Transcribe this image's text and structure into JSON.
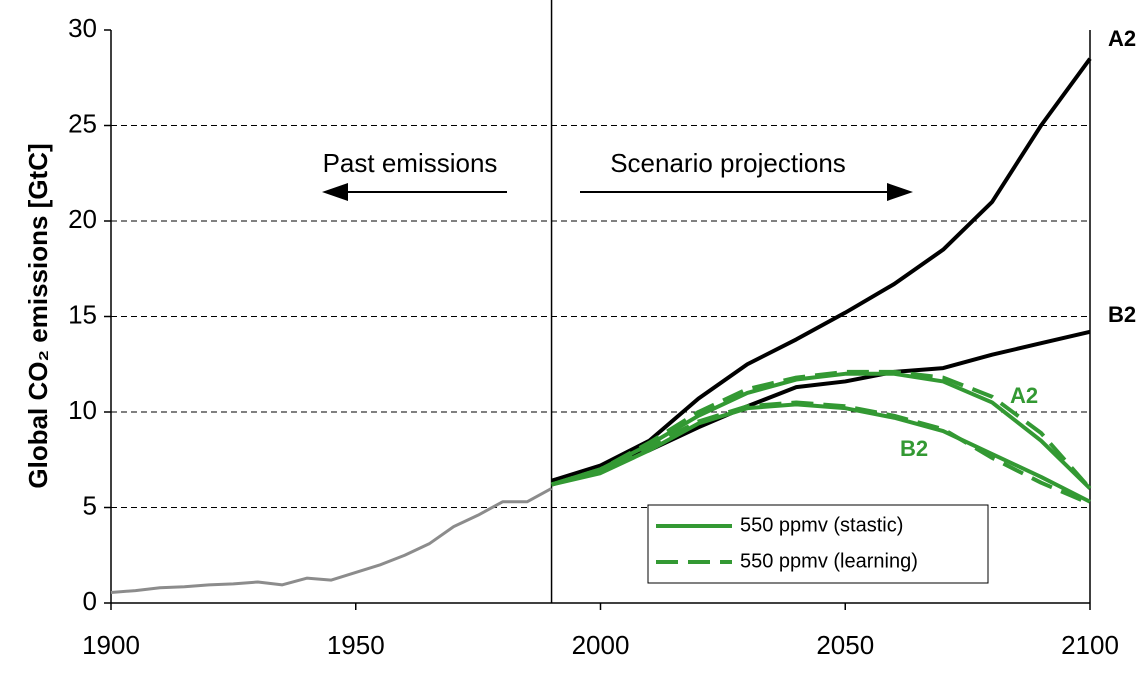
{
  "chart_data": {
    "type": "line",
    "ylabel": "Global CO₂ emissions [GtC]",
    "xlim": [
      1900,
      2100
    ],
    "xticks": [
      1900,
      1950,
      2000,
      2050,
      2100
    ],
    "ylim": [
      0,
      30
    ],
    "yticks": [
      0,
      5,
      10,
      15,
      20,
      25,
      30
    ],
    "grid": true,
    "divider": 1990,
    "series": [
      {
        "color": "#8c8c8c",
        "style": "solid",
        "x": [
          1900,
          1905,
          1910,
          1915,
          1920,
          1925,
          1930,
          1935,
          1940,
          1945,
          1950,
          1955,
          1960,
          1965,
          1970,
          1975,
          1980,
          1985,
          1990
        ],
        "values": [
          0.55,
          0.65,
          0.8,
          0.85,
          0.95,
          1.0,
          1.1,
          0.95,
          1.3,
          1.2,
          1.6,
          2.0,
          2.5,
          3.1,
          4.0,
          4.6,
          5.3,
          5.3,
          6.0
        ]
      },
      {
        "color": "#000000",
        "style": "solid",
        "x": [
          1990,
          2000,
          2010,
          2020,
          2030,
          2040,
          2050,
          2060,
          2070,
          2080,
          2090,
          2100
        ],
        "values": [
          6.4,
          7.2,
          8.5,
          10.7,
          12.5,
          13.8,
          15.2,
          16.7,
          18.5,
          21.0,
          25.0,
          28.5
        ]
      },
      {
        "color": "#000000",
        "style": "solid",
        "x": [
          1990,
          2000,
          2010,
          2020,
          2030,
          2040,
          2050,
          2060,
          2070,
          2080,
          2090,
          2100
        ],
        "values": [
          6.4,
          7.1,
          8.0,
          9.2,
          10.3,
          11.3,
          11.6,
          12.1,
          12.3,
          13.0,
          13.6,
          14.2
        ]
      },
      {
        "color": "#339933",
        "style": "solid",
        "x": [
          1990,
          2000,
          2010,
          2020,
          2030,
          2040,
          2050,
          2060,
          2070,
          2080,
          2090,
          2100
        ],
        "values": [
          6.2,
          7.0,
          8.3,
          9.8,
          11.0,
          11.7,
          12.0,
          12.0,
          11.6,
          10.5,
          8.5,
          6.0
        ]
      },
      {
        "color": "#339933",
        "style": "dashed",
        "x": [
          1990,
          2000,
          2010,
          2020,
          2030,
          2040,
          2050,
          2060,
          2070,
          2080,
          2090,
          2100
        ],
        "values": [
          6.2,
          7.0,
          8.4,
          10.0,
          11.2,
          11.8,
          12.1,
          12.1,
          11.8,
          10.8,
          8.9,
          6.0
        ]
      },
      {
        "color": "#339933",
        "style": "solid",
        "x": [
          1990,
          2000,
          2010,
          2020,
          2030,
          2040,
          2050,
          2060,
          2070,
          2080,
          2090,
          2100
        ],
        "values": [
          6.2,
          6.8,
          8.0,
          9.4,
          10.2,
          10.4,
          10.2,
          9.7,
          9.0,
          7.8,
          6.6,
          5.3
        ]
      },
      {
        "color": "#339933",
        "style": "dashed",
        "x": [
          1990,
          2000,
          2010,
          2020,
          2030,
          2040,
          2050,
          2060,
          2070,
          2080,
          2090,
          2100
        ],
        "values": [
          6.2,
          6.9,
          8.2,
          9.5,
          10.3,
          10.5,
          10.3,
          9.8,
          9.1,
          7.6,
          6.3,
          5.2
        ]
      }
    ],
    "legend": [
      {
        "label": "550 ppmv (stastic)",
        "color": "#339933",
        "style": "solid"
      },
      {
        "label": "550 ppmv (learning)",
        "color": "#339933",
        "style": "dashed"
      }
    ],
    "annotations": [
      {
        "text": "Past emissions",
        "color": "#000000"
      },
      {
        "text": "Scenario projections",
        "color": "#000000"
      },
      {
        "text": "A2",
        "color": "#000000"
      },
      {
        "text": "B2",
        "color": "#000000"
      },
      {
        "text": "A2",
        "color": "#339933"
      },
      {
        "text": "B2",
        "color": "#339933"
      }
    ]
  }
}
